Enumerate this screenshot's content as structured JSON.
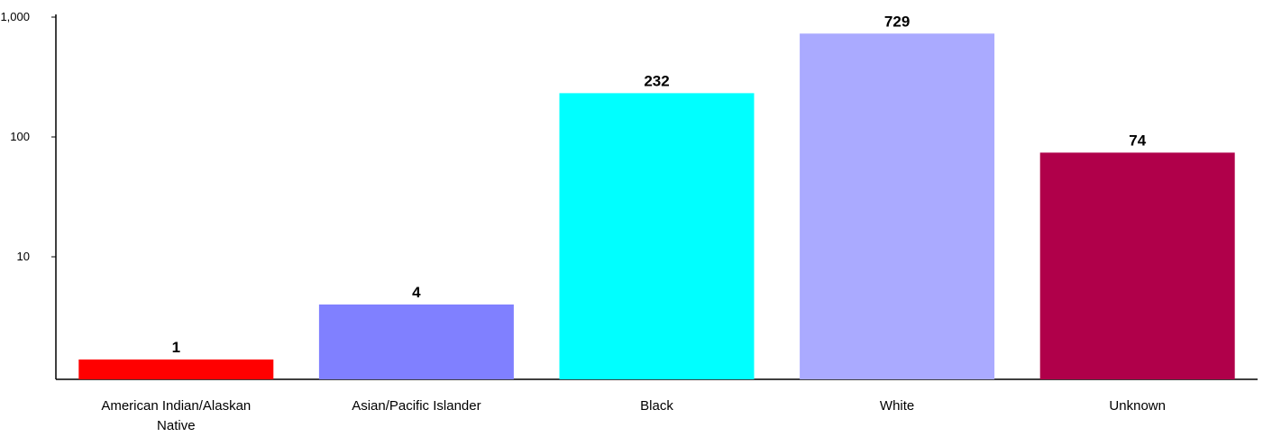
{
  "chart_data": {
    "type": "bar",
    "y_scale": "log",
    "categories": [
      [
        "American Indian/Alaskan",
        "Native"
      ],
      [
        "Asian/Pacific Islander"
      ],
      [
        "Black"
      ],
      [
        "White"
      ],
      [
        "Unknown"
      ]
    ],
    "values": [
      1,
      4,
      232,
      729,
      74
    ],
    "data_labels": [
      "1",
      "4",
      "232",
      "729",
      "74"
    ],
    "colors": [
      "#ff0000",
      "#8080ff",
      "#00ffff",
      "#aaaaff",
      "#b0004a"
    ],
    "yticks": [
      {
        "value": 10,
        "label": "10"
      },
      {
        "value": 100,
        "label": "100"
      },
      {
        "value": 1000,
        "label": "1,000"
      }
    ],
    "ylim": [
      1,
      1000
    ],
    "grid": false,
    "legend": "none",
    "title": "",
    "xlabel": "",
    "ylabel": ""
  }
}
